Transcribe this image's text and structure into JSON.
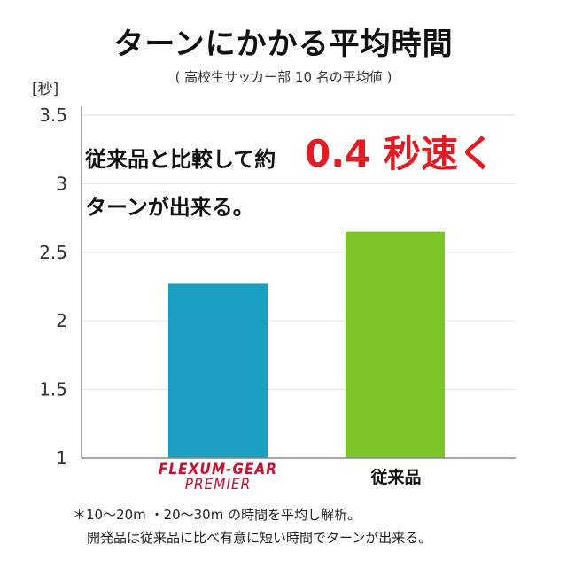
{
  "title": "ターンにかかる平均時間",
  "subtitle": "( 高校生サッカー部 10 名の平均値 )",
  "unit_label": "[秒]",
  "callout": {
    "line1": "従来品と比較して約",
    "highlight": "0.4 秒速く",
    "line2": "ターンが出来る。"
  },
  "notes": {
    "line1": "＊10〜20m ・20〜30m の時間を平均し解析。",
    "line2": "開発品は従来品に比べ有意に短い時間でターンが出来る。"
  },
  "colors": {
    "flexum": "#1b9fc3",
    "conventional": "#7cc52b",
    "highlight": "#e31b23",
    "logo": "#c8102e"
  },
  "chart_data": {
    "type": "bar",
    "categories": [
      "FLEXUM-GEAR PREMIER",
      "従来品"
    ],
    "category_lines": [
      [
        "FLEXUM-GEAR",
        "PREMIER"
      ],
      [
        "従来品"
      ]
    ],
    "values": [
      2.27,
      2.65
    ],
    "ylim": [
      1,
      3.5
    ],
    "yticks": [
      "3.5",
      "3",
      "2.5",
      "2",
      "1.5",
      "1"
    ],
    "ytick_values": [
      3.5,
      3,
      2.5,
      2,
      1.5,
      1
    ],
    "grid": true,
    "title": "ターンにかかる平均時間",
    "ylabel": "[秒]",
    "xlabel": ""
  }
}
